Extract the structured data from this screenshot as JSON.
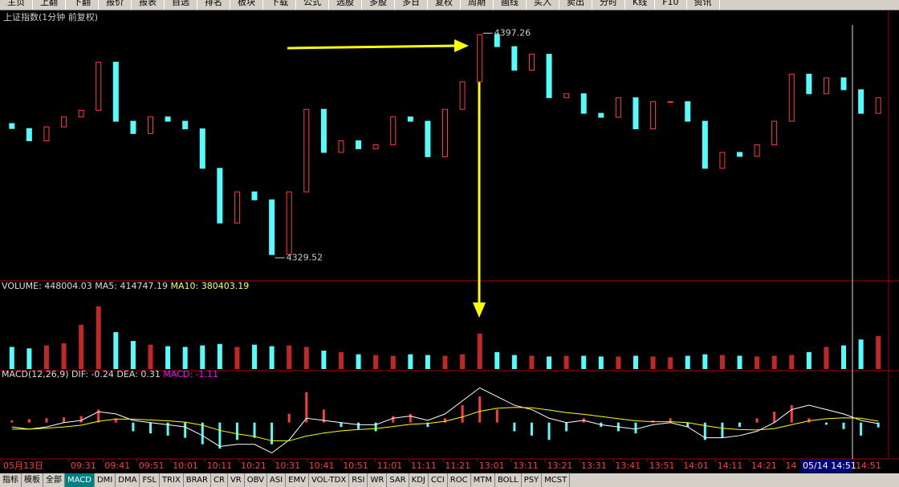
{
  "menu": [
    "主页",
    "上翻",
    "下翻",
    "报价",
    "报表",
    "自选",
    "排名",
    "板块",
    "下载",
    "公式",
    "选股",
    "多股",
    "多日",
    "复权",
    "周期",
    "画线",
    "买入",
    "卖出",
    "分时",
    "K线",
    "F10",
    "资讯"
  ],
  "tabs": [
    "指标",
    "模板",
    "全部",
    "MACD",
    "DMI",
    "DMA",
    "FSL",
    "TRIX",
    "BRAR",
    "CR",
    "VR",
    "OBV",
    "ASI",
    "EMV",
    "VOL-TDX",
    "RSI",
    "WR",
    "SAR",
    "KDJ",
    "CCI",
    "ROC",
    "MTM",
    "BOLL",
    "PSY",
    "MCST"
  ],
  "x_labels": [
    "05月13日",
    "09:31",
    "09:41",
    "09:51",
    "10:01",
    "10:11",
    "10:21",
    "10:31",
    "10:41",
    "10:51",
    "11:01",
    "11:11",
    "11:21",
    "13:01",
    "13:11",
    "13:21",
    "13:31",
    "13:41",
    "13:51",
    "14:01",
    "14:11",
    "14:21",
    "14",
    "14:51"
  ],
  "cursor_label": "05/14 14:51",
  "chart_data": [
    {
      "type": "candlestick",
      "title": "上证指数(1分钟 前复权)",
      "ylim": [
        4325,
        4400
      ],
      "up_color": "#ff3c3c",
      "down_color": "#54fcfc",
      "high": 4397.26,
      "low": 4329.52,
      "open": [
        4370,
        4368.5,
        4364.8,
        4369,
        4372,
        4374,
        4388.5,
        4370.7,
        4367,
        4372,
        4370.7,
        4368.4,
        4356.5,
        4340,
        4349.4,
        4347,
        4330.5,
        4349.4,
        4374.3,
        4361.3,
        4364.8,
        4362.4,
        4363.6,
        4372,
        4370.7,
        4360,
        4374.3,
        4382.6,
        4396.8,
        4393.2,
        4386.1,
        4390.9,
        4377.8,
        4379,
        4373.1,
        4371.9,
        4377.8,
        4368.4,
        4376.6,
        4376.6,
        4370.7,
        4356.5,
        4361.3,
        4360.1,
        4363.6,
        4370.7,
        4384.9,
        4379,
        4383.8,
        4380.2,
        4373.1
      ],
      "close": [
        4368.5,
        4364.8,
        4369,
        4372,
        4374,
        4388.5,
        4370.7,
        4367,
        4372,
        4370.7,
        4368.4,
        4356.5,
        4340,
        4349.4,
        4347,
        4330.5,
        4349.4,
        4374.3,
        4361.3,
        4364.8,
        4362.4,
        4363.6,
        4372,
        4370.7,
        4360,
        4374.3,
        4382.6,
        4396.8,
        4393.2,
        4386.1,
        4390.9,
        4377.8,
        4379,
        4373.1,
        4371.9,
        4377.8,
        4368.4,
        4376.6,
        4376.6,
        4370.7,
        4356.5,
        4361.3,
        4360.1,
        4363.6,
        4370.7,
        4384.9,
        4379,
        4383.8,
        4380.2,
        4373.1,
        4377.8
      ]
    },
    {
      "type": "volume",
      "ylim": [
        0,
        1000000
      ],
      "up_color": "#c02828",
      "down_color": "#54fcfc",
      "legend": [
        {
          "label": "VOLUME:"
        },
        {
          "label": "MA5:",
          "value": 414747.19
        },
        {
          "label": "MA10:",
          "value": 380403.19
        }
      ],
      "values": [
        300000,
        280000,
        320000,
        350000,
        600000,
        850000,
        500000,
        380000,
        330000,
        310000,
        300000,
        320000,
        340000,
        300000,
        330000,
        310000,
        320000,
        300000,
        250000,
        230000,
        200000,
        190000,
        180000,
        200000,
        190000,
        180000,
        200000,
        480000,
        230000,
        190000,
        180000,
        170000,
        180000,
        180000,
        170000,
        170000,
        180000,
        170000,
        160000,
        180000,
        200000,
        190000,
        180000,
        170000,
        180000,
        190000,
        230000,
        300000,
        320000,
        400000,
        448004.03
      ]
    },
    {
      "type": "macd",
      "title": "MACD(12,26,9)",
      "ylim": [
        -8,
        9
      ],
      "series": [
        {
          "name": "DIF:",
          "color": "#ffffff",
          "values": [
            -1,
            -1.5,
            -1,
            0,
            0.5,
            2.5,
            2,
            0.5,
            0,
            -0.5,
            -1,
            -3,
            -5.5,
            -5,
            -5,
            -7,
            -4,
            1,
            0.5,
            0,
            -0.5,
            -0.5,
            1,
            1.5,
            0.5,
            2,
            5,
            8,
            6,
            4,
            3,
            1,
            0,
            0.5,
            -0.5,
            -1,
            -1.5,
            -0.5,
            0,
            -1,
            -3.5,
            -3.5,
            -3,
            -2,
            0,
            3,
            4,
            3,
            2,
            0.5,
            -0.24
          ]
        },
        {
          "name": "DEA:",
          "color": "#ffff00",
          "values": [
            -1.5,
            -1.5,
            -1.3,
            -1,
            -0.6,
            0.3,
            0.8,
            0.8,
            0.6,
            0.4,
            0.1,
            -0.6,
            -1.8,
            -2.6,
            -3.2,
            -4.2,
            -4.2,
            -3.1,
            -2.4,
            -1.9,
            -1.6,
            -1.4,
            -0.9,
            -0.4,
            -0.2,
            0.3,
            1.3,
            2.6,
            3.3,
            3.5,
            3.4,
            2.9,
            2.3,
            1.9,
            1.4,
            0.9,
            0.4,
            0.2,
            0.2,
            0,
            -0.7,
            -1.3,
            -1.6,
            -1.7,
            -1.4,
            -0.5,
            0.4,
            0.9,
            1.1,
            1.0,
            0.31
          ]
        },
        {
          "name": "MACD:",
          "color": "#ff00ff",
          "values": [
            0.5,
            0.8,
            1.0,
            1.2,
            1.5,
            3.0,
            1.0,
            -2,
            -2.5,
            -3,
            -3.5,
            -5,
            -6,
            -4,
            -3.5,
            -5,
            2,
            7,
            3,
            -1,
            -1.5,
            -2,
            1.5,
            2,
            -1,
            1,
            4,
            6,
            3,
            -2,
            -3,
            -4,
            -2,
            1,
            -1,
            -2,
            -2.5,
            0.5,
            1,
            -1,
            -4,
            -3.5,
            -1,
            1,
            2.5,
            4,
            1,
            -0.5,
            -1.5,
            -3,
            -1.11
          ]
        }
      ]
    }
  ]
}
